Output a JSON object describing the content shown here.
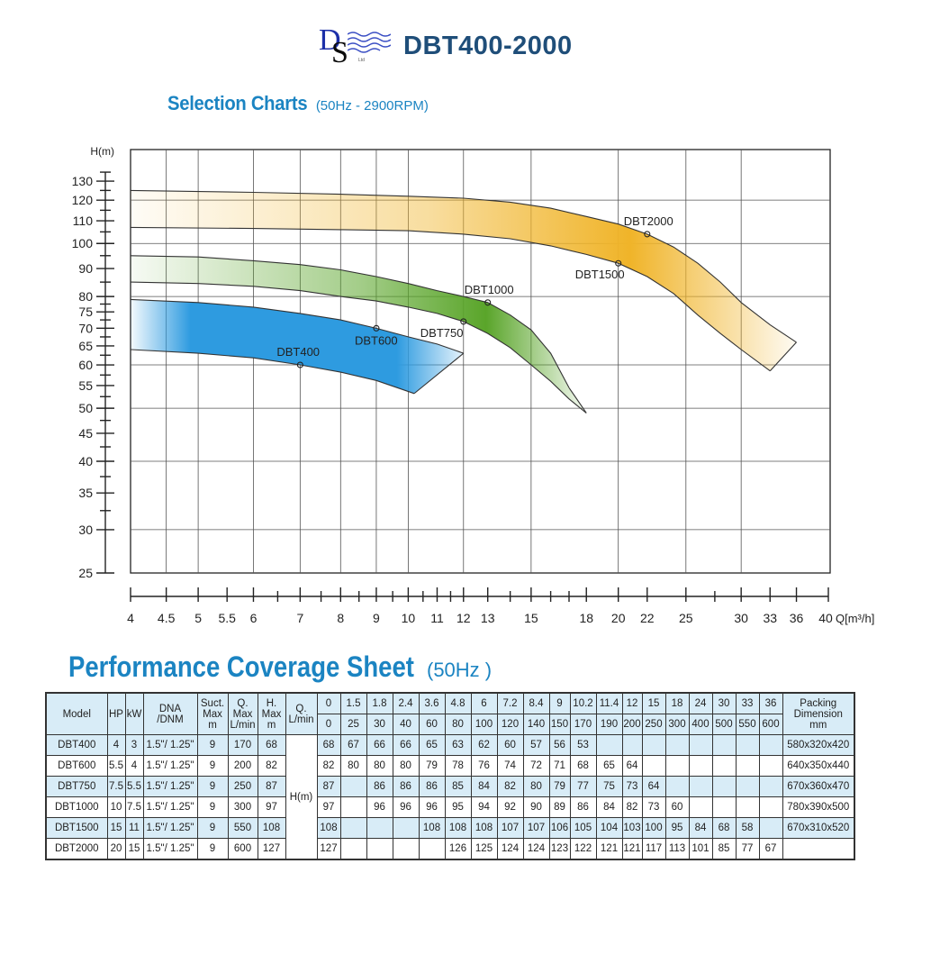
{
  "header": {
    "logo_letters": "DS",
    "logo_subtext": "Ltd",
    "title": "DBT400-2000"
  },
  "selection": {
    "title": "Selection Charts",
    "condition": "(50Hz - 2900RPM)"
  },
  "chart_data": {
    "type": "area",
    "title": "Selection Charts",
    "subtitle": "(50Hz - 2900RPM)",
    "xlabel": "Q[m³/h]",
    "ylabel": "H(m)",
    "xscale": "log",
    "yscale": "log",
    "xlim": [
      4,
      40
    ],
    "ylim": [
      25,
      130
    ],
    "grid": true,
    "x_ticks": [
      4,
      4.5,
      5,
      5.5,
      6,
      7,
      8,
      9,
      10,
      11,
      12,
      13,
      15,
      18,
      20,
      22,
      25,
      30,
      33,
      36,
      40
    ],
    "x_minor_ticks": [
      6.5,
      7.5,
      8.5,
      9.5,
      10.5,
      11.5,
      14,
      16,
      17,
      27.5
    ],
    "y_ticks": [
      130,
      120,
      110,
      100,
      90,
      80,
      75,
      70,
      65,
      60,
      55,
      50,
      45,
      40,
      35,
      30,
      25
    ],
    "y_minor_ticks": [
      135,
      125,
      115,
      105,
      95,
      85,
      77.5,
      72.5,
      67.5,
      62.5,
      57.5,
      52.5,
      47.5,
      42.5,
      37.5,
      32.5
    ],
    "x_gridlines": [
      4.5,
      5,
      6,
      7,
      8,
      9,
      10,
      12,
      15,
      20,
      25,
      30
    ],
    "y_gridlines": [
      120,
      100,
      80,
      60,
      50,
      40,
      30
    ],
    "bands": [
      {
        "name": "DBT400-DBT600",
        "color": "#2e9be0",
        "gradient": "fade-left-and-right",
        "top_edge": [
          [
            4,
            79
          ],
          [
            5,
            78
          ],
          [
            6,
            76.5
          ],
          [
            7,
            74.5
          ],
          [
            8,
            72.5
          ],
          [
            9,
            70
          ],
          [
            10,
            67.5
          ],
          [
            11,
            65.5
          ],
          [
            12,
            63
          ]
        ],
        "bottom_edge": [
          [
            4,
            64
          ],
          [
            5,
            63
          ],
          [
            6,
            61.8
          ],
          [
            7,
            60
          ],
          [
            8,
            58.2
          ],
          [
            9,
            56.2
          ],
          [
            10.2,
            53.2
          ]
        ]
      },
      {
        "name": "DBT750-DBT1000",
        "color": "#5aa52a",
        "gradient": "fade-left-and-right",
        "top_edge": [
          [
            4,
            95
          ],
          [
            5,
            94.5
          ],
          [
            6,
            93
          ],
          [
            7,
            91.5
          ],
          [
            8,
            89.5
          ],
          [
            9,
            87
          ],
          [
            10,
            84.5
          ],
          [
            11,
            82
          ],
          [
            12,
            80
          ],
          [
            13,
            78
          ],
          [
            14,
            74
          ],
          [
            15,
            69.5
          ],
          [
            16,
            63
          ],
          [
            17,
            54.5
          ]
        ],
        "bottom_edge": [
          [
            4,
            85
          ],
          [
            5,
            84.5
          ],
          [
            6,
            83.5
          ],
          [
            7,
            82
          ],
          [
            8,
            80
          ],
          [
            9,
            78.5
          ],
          [
            10,
            76.5
          ],
          [
            11,
            74.5
          ],
          [
            12,
            72
          ],
          [
            13,
            68.5
          ],
          [
            14,
            64.5
          ],
          [
            15,
            60
          ],
          [
            16,
            56
          ],
          [
            17,
            52
          ],
          [
            18,
            49
          ]
        ]
      },
      {
        "name": "DBT1500-DBT2000",
        "color": "#f0b429",
        "gradient": "fade-left-and-right",
        "top_edge": [
          [
            4,
            125
          ],
          [
            6,
            124
          ],
          [
            8,
            123
          ],
          [
            10,
            122
          ],
          [
            12,
            121
          ],
          [
            14,
            119
          ],
          [
            16,
            116
          ],
          [
            18,
            112
          ],
          [
            20,
            108.5
          ],
          [
            22,
            104
          ],
          [
            24,
            98.5
          ],
          [
            26,
            92
          ],
          [
            28,
            85
          ],
          [
            30,
            78
          ],
          [
            33,
            71
          ],
          [
            36,
            66
          ]
        ],
        "bottom_edge": [
          [
            4,
            107
          ],
          [
            6,
            106.5
          ],
          [
            8,
            106
          ],
          [
            10,
            105.5
          ],
          [
            12,
            104
          ],
          [
            14,
            102
          ],
          [
            16,
            99
          ],
          [
            18,
            95.5
          ],
          [
            20,
            92
          ],
          [
            22,
            87
          ],
          [
            24,
            81
          ],
          [
            26,
            74
          ],
          [
            28,
            68.5
          ],
          [
            30,
            64
          ],
          [
            33,
            58.5
          ]
        ]
      }
    ],
    "annotations": [
      {
        "label": "DBT400",
        "x": 7,
        "y": 60,
        "label_pos": "above"
      },
      {
        "label": "DBT600",
        "x": 9,
        "y": 70,
        "label_pos": "below"
      },
      {
        "label": "DBT750",
        "x": 12,
        "y": 72,
        "label_pos": "below-left"
      },
      {
        "label": "DBT1000",
        "x": 13,
        "y": 78,
        "label_pos": "above"
      },
      {
        "label": "DBT1500",
        "x": 20,
        "y": 92,
        "label_pos": "below-left"
      },
      {
        "label": "DBT2000",
        "x": 22,
        "y": 104,
        "label_pos": "above"
      }
    ]
  },
  "performance": {
    "title": "Performance Coverage Sheet",
    "condition": "(50Hz )",
    "headers": {
      "model": "Model",
      "hp": "HP",
      "kw": "kW",
      "dna_line1": "DNA",
      "dna_line2": "/DNM",
      "suct_line1": "Suct.",
      "suct_line2": "Max",
      "suct_line3": "m",
      "qmax_line1": "Q.",
      "qmax_line2": "Max",
      "qmax_line3": "L/min",
      "hmax_line1": "H.",
      "hmax_line2": "Max",
      "hmax_line3": "m",
      "q_line1": "Q.",
      "q_line2": "L/min",
      "h_label": "H(m)",
      "packing_line1": "Packing",
      "packing_line2": "Dimension",
      "packing_line3": "mm"
    },
    "q_m3h": [
      "0",
      "1.5",
      "1.8",
      "2.4",
      "3.6",
      "4.8",
      "6",
      "7.2",
      "8.4",
      "9",
      "10.2",
      "11.4",
      "12",
      "15",
      "18",
      "24",
      "30",
      "33",
      "36"
    ],
    "q_lmin": [
      "0",
      "25",
      "30",
      "40",
      "60",
      "80",
      "100",
      "120",
      "140",
      "150",
      "170",
      "190",
      "200",
      "250",
      "300",
      "400",
      "500",
      "550",
      "600"
    ],
    "rows": [
      {
        "model": "DBT400",
        "hp": "4",
        "kw": "3",
        "dna": "1.5\"/ 1.25\"",
        "suct": "9",
        "qmax": "170",
        "hmax": "68",
        "h": [
          "68",
          "67",
          "66",
          "66",
          "65",
          "63",
          "62",
          "60",
          "57",
          "56",
          "53",
          "",
          "",
          "",
          "",
          "",
          "",
          "",
          ""
        ],
        "packing": "580x320x420"
      },
      {
        "model": "DBT600",
        "hp": "5.5",
        "kw": "4",
        "dna": "1.5\"/ 1.25\"",
        "suct": "9",
        "qmax": "200",
        "hmax": "82",
        "h": [
          "82",
          "80",
          "80",
          "80",
          "79",
          "78",
          "76",
          "74",
          "72",
          "71",
          "68",
          "65",
          "64",
          "",
          "",
          "",
          "",
          "",
          ""
        ],
        "packing": "640x350x440"
      },
      {
        "model": "DBT750",
        "hp": "7.5",
        "kw": "5.5",
        "dna": "1.5\"/ 1.25\"",
        "suct": "9",
        "qmax": "250",
        "hmax": "87",
        "h": [
          "87",
          "",
          "86",
          "86",
          "86",
          "85",
          "84",
          "82",
          "80",
          "79",
          "77",
          "75",
          "73",
          "64",
          "",
          "",
          "",
          "",
          ""
        ],
        "packing": "670x360x470"
      },
      {
        "model": "DBT1000",
        "hp": "10",
        "kw": "7.5",
        "dna": "1.5\"/ 1.25\"",
        "suct": "9",
        "qmax": "300",
        "hmax": "97",
        "h": [
          "97",
          "",
          "96",
          "96",
          "96",
          "95",
          "94",
          "92",
          "90",
          "89",
          "86",
          "84",
          "82",
          "73",
          "60",
          "",
          "",
          "",
          ""
        ],
        "packing": "780x390x500"
      },
      {
        "model": "DBT1500",
        "hp": "15",
        "kw": "11",
        "dna": "1.5\"/ 1.25\"",
        "suct": "9",
        "qmax": "550",
        "hmax": "108",
        "h": [
          "108",
          "",
          "",
          "",
          "108",
          "108",
          "108",
          "107",
          "107",
          "106",
          "105",
          "104",
          "103",
          "100",
          "95",
          "84",
          "68",
          "58",
          ""
        ],
        "packing": "670x310x520"
      },
      {
        "model": "DBT2000",
        "hp": "20",
        "kw": "15",
        "dna": "1.5\"/ 1.25\"",
        "suct": "9",
        "qmax": "600",
        "hmax": "127",
        "h": [
          "127",
          "",
          "",
          "",
          "",
          "126",
          "125",
          "124",
          "124",
          "123",
          "122",
          "121",
          "121",
          "117",
          "113",
          "101",
          "85",
          "77",
          "67"
        ],
        "packing": ""
      }
    ]
  }
}
